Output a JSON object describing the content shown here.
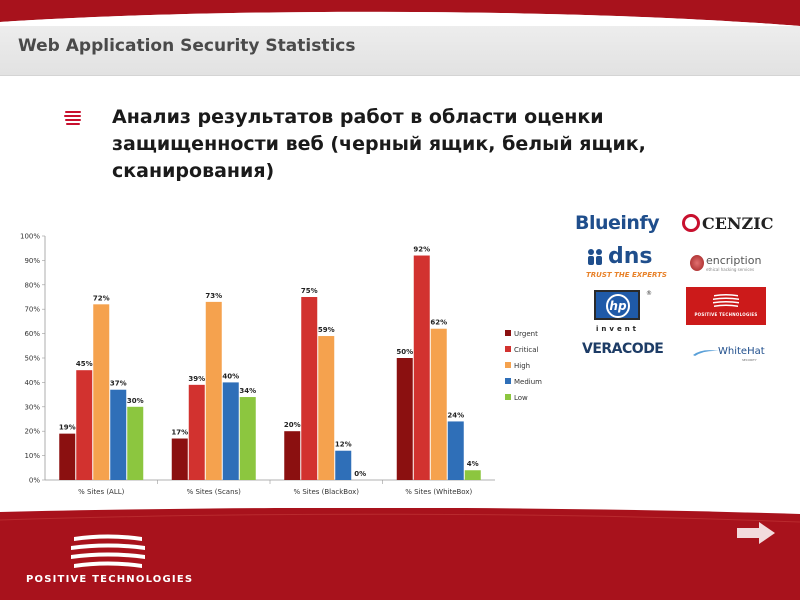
{
  "slide": {
    "title": "Web Application Security Statistics",
    "heading": "Анализ результатов работ в области оценки защищенности веб (черный ящик, белый ящик, сканирования)"
  },
  "colors": {
    "brand_red": "#a8121c",
    "urgent": "#8b1010",
    "critical": "#d2322f",
    "high": "#f5a24e",
    "medium": "#2f6fb8",
    "low": "#8cc63f"
  },
  "chart_data": {
    "type": "bar",
    "categories": [
      "% Sites (ALL)",
      "% Sites (Scans)",
      "% Sites (BlackBox)",
      "% Sites (WhiteBox)"
    ],
    "series": [
      {
        "name": "Urgent",
        "values": [
          19,
          17,
          20,
          50
        ]
      },
      {
        "name": "Critical",
        "values": [
          45,
          39,
          75,
          92
        ]
      },
      {
        "name": "High",
        "values": [
          72,
          73,
          59,
          62
        ]
      },
      {
        "name": "Medium",
        "values": [
          37,
          40,
          12,
          24
        ]
      },
      {
        "name": "Low",
        "values": [
          30,
          34,
          0,
          4
        ]
      }
    ],
    "ylim": [
      0,
      100
    ],
    "yticks": [
      "0%",
      "10%",
      "20%",
      "30%",
      "40%",
      "50%",
      "60%",
      "70%",
      "80%",
      "90%",
      "100%"
    ],
    "value_labels": [
      [
        "19%",
        "45%",
        "72%",
        "37%",
        "30%"
      ],
      [
        "17%",
        "39%",
        "73%",
        "40%",
        "34%"
      ],
      [
        "20%",
        "75%",
        "59%",
        "12%",
        "0%"
      ],
      [
        "50%",
        "92%",
        "62%",
        "24%",
        "4%"
      ]
    ],
    "legend_position": "right",
    "grid": false
  },
  "logos": {
    "blueinfy": "Blueinfy",
    "cenzic": "CENZIC",
    "dns": "dns",
    "dns_tagline": "TRUST THE EXPERTS",
    "encription": "encription",
    "encription_sub": "ethical hacking services",
    "hp": "hp",
    "hp_reg": "®",
    "hp_invent": "invent",
    "positive_small": "POSITIVE TECHNOLOGIES",
    "veracode": "VERACODE",
    "whitehat": "WhiteHat",
    "whitehat_sub": "SECURITY"
  },
  "footer": {
    "logo_text": "POSITIVE TECHNOLOGIES",
    "next_icon": "arrow-right-icon"
  }
}
